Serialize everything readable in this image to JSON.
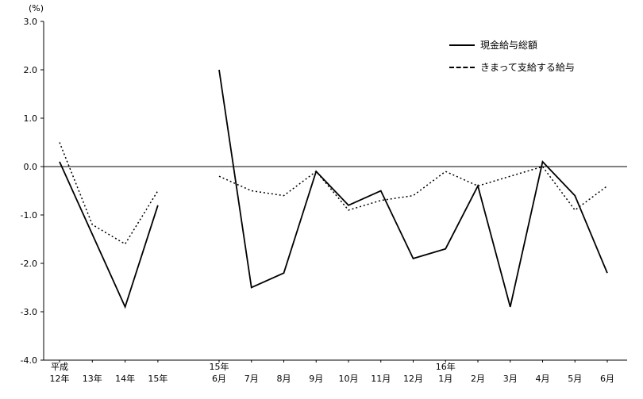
{
  "chart_data": {
    "type": "line",
    "title": "",
    "xlabel": "",
    "ylabel": "(%)",
    "ylim": [
      -4.0,
      3.0
    ],
    "yticks": [
      3.0,
      2.0,
      1.0,
      0.0,
      -1.0,
      -2.0,
      -3.0,
      -4.0
    ],
    "grid": false,
    "legend_position": "top-right",
    "legend": [
      {
        "label": "現金給与総額",
        "style": "solid"
      },
      {
        "label": "きまって支給する給与",
        "style": "dashed"
      }
    ],
    "groups": [
      {
        "era_labels": [
          {
            "index": 0,
            "label": "平成"
          }
        ],
        "categories": [
          "12年",
          "13年",
          "14年",
          "15年"
        ],
        "series": [
          {
            "name": "現金給与総額",
            "style": "solid",
            "values": [
              0.1,
              -1.4,
              -2.9,
              -0.8
            ]
          },
          {
            "name": "きまって支給する給与",
            "style": "dashed",
            "values": [
              0.5,
              -1.2,
              -1.6,
              -0.5
            ]
          }
        ]
      },
      {
        "era_labels": [
          {
            "index": 0,
            "label": "15年"
          },
          {
            "index": 7,
            "label": "16年"
          }
        ],
        "categories": [
          "6月",
          "7月",
          "8月",
          "9月",
          "10月",
          "11月",
          "12月",
          "1月",
          "2月",
          "3月",
          "4月",
          "5月",
          "6月"
        ],
        "series": [
          {
            "name": "現金給与総額",
            "style": "solid",
            "values": [
              2.0,
              -2.5,
              -2.2,
              -0.1,
              -0.8,
              -0.5,
              -1.9,
              -1.7,
              -0.4,
              -2.9,
              0.1,
              -0.6,
              -2.2
            ]
          },
          {
            "name": "きまって支給する給与",
            "style": "dashed",
            "values": [
              -0.2,
              -0.5,
              -0.6,
              -0.1,
              -0.9,
              -0.7,
              -0.6,
              -0.1,
              -0.4,
              -0.2,
              0.0,
              -0.9,
              -0.4
            ]
          }
        ]
      }
    ],
    "colors": {
      "line": "#000000",
      "axis": "#000000",
      "background": "#ffffff"
    }
  }
}
